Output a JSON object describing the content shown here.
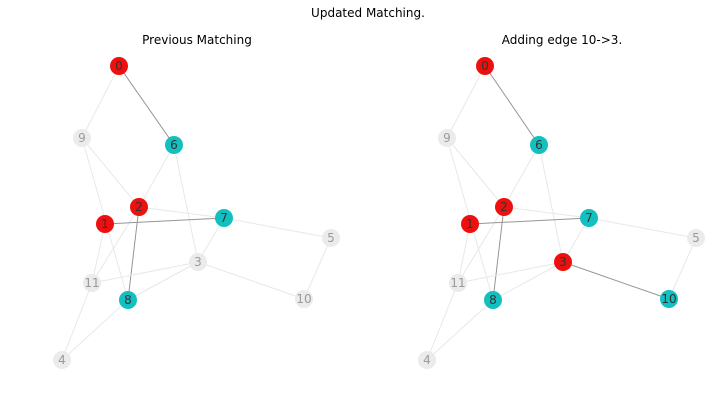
{
  "figure": {
    "title": "Updated Matching."
  },
  "colors": {
    "matched_a": "#ee0f0f",
    "matched_b": "#14bfbf",
    "unmatched_fill": "#ebebeb",
    "matched_label": "#333333",
    "unmatched_label": "#9a9a9a",
    "matching_edge": "#959595",
    "other_edge": "#e8e8e8"
  },
  "panels": [
    {
      "title": "Previous Matching",
      "nodes": [
        {
          "id": "0",
          "label": "0",
          "status": "matched_a"
        },
        {
          "id": "1",
          "label": "1",
          "status": "matched_a"
        },
        {
          "id": "2",
          "label": "2",
          "status": "matched_a"
        },
        {
          "id": "3",
          "label": "3",
          "status": "unmatched"
        },
        {
          "id": "4",
          "label": "4",
          "status": "unmatched"
        },
        {
          "id": "5",
          "label": "5",
          "status": "unmatched"
        },
        {
          "id": "6",
          "label": "6",
          "status": "matched_b"
        },
        {
          "id": "7",
          "label": "7",
          "status": "matched_b"
        },
        {
          "id": "8",
          "label": "8",
          "status": "matched_b"
        },
        {
          "id": "9",
          "label": "9",
          "status": "unmatched"
        },
        {
          "id": "10",
          "label": "10",
          "status": "unmatched"
        },
        {
          "id": "11",
          "label": "11",
          "status": "unmatched"
        }
      ],
      "edges": [
        {
          "source": "0",
          "target": "9",
          "matched": false
        },
        {
          "source": "0",
          "target": "6",
          "matched": true
        },
        {
          "source": "9",
          "target": "2",
          "matched": false
        },
        {
          "source": "9",
          "target": "8",
          "matched": false
        },
        {
          "source": "6",
          "target": "2",
          "matched": false
        },
        {
          "source": "6",
          "target": "3",
          "matched": false
        },
        {
          "source": "2",
          "target": "7",
          "matched": false
        },
        {
          "source": "2",
          "target": "11",
          "matched": false
        },
        {
          "source": "2",
          "target": "8",
          "matched": true
        },
        {
          "source": "1",
          "target": "7",
          "matched": true
        },
        {
          "source": "1",
          "target": "11",
          "matched": false
        },
        {
          "source": "7",
          "target": "5",
          "matched": false
        },
        {
          "source": "7",
          "target": "3",
          "matched": false
        },
        {
          "source": "5",
          "target": "10",
          "matched": false
        },
        {
          "source": "3",
          "target": "11",
          "matched": false
        },
        {
          "source": "3",
          "target": "8",
          "matched": false
        },
        {
          "source": "3",
          "target": "10",
          "matched": false
        },
        {
          "source": "8",
          "target": "4",
          "matched": false
        },
        {
          "source": "11",
          "target": "4",
          "matched": false
        }
      ]
    },
    {
      "title": "Adding edge 10->3.",
      "nodes": [
        {
          "id": "0",
          "label": "0",
          "status": "matched_a"
        },
        {
          "id": "1",
          "label": "1",
          "status": "matched_a"
        },
        {
          "id": "2",
          "label": "2",
          "status": "matched_a"
        },
        {
          "id": "3",
          "label": "3",
          "status": "matched_a"
        },
        {
          "id": "4",
          "label": "4",
          "status": "unmatched"
        },
        {
          "id": "5",
          "label": "5",
          "status": "unmatched"
        },
        {
          "id": "6",
          "label": "6",
          "status": "matched_b"
        },
        {
          "id": "7",
          "label": "7",
          "status": "matched_b"
        },
        {
          "id": "8",
          "label": "8",
          "status": "matched_b"
        },
        {
          "id": "9",
          "label": "9",
          "status": "unmatched"
        },
        {
          "id": "10",
          "label": "10",
          "status": "matched_b"
        },
        {
          "id": "11",
          "label": "11",
          "status": "unmatched"
        }
      ],
      "edges": [
        {
          "source": "0",
          "target": "9",
          "matched": false
        },
        {
          "source": "0",
          "target": "6",
          "matched": true
        },
        {
          "source": "9",
          "target": "2",
          "matched": false
        },
        {
          "source": "9",
          "target": "8",
          "matched": false
        },
        {
          "source": "6",
          "target": "2",
          "matched": false
        },
        {
          "source": "6",
          "target": "3",
          "matched": false
        },
        {
          "source": "2",
          "target": "7",
          "matched": false
        },
        {
          "source": "2",
          "target": "11",
          "matched": false
        },
        {
          "source": "2",
          "target": "8",
          "matched": true
        },
        {
          "source": "1",
          "target": "7",
          "matched": true
        },
        {
          "source": "1",
          "target": "11",
          "matched": false
        },
        {
          "source": "7",
          "target": "5",
          "matched": false
        },
        {
          "source": "7",
          "target": "3",
          "matched": false
        },
        {
          "source": "5",
          "target": "10",
          "matched": false
        },
        {
          "source": "3",
          "target": "11",
          "matched": false
        },
        {
          "source": "3",
          "target": "8",
          "matched": false
        },
        {
          "source": "3",
          "target": "10",
          "matched": true
        },
        {
          "source": "8",
          "target": "4",
          "matched": false
        },
        {
          "source": "11",
          "target": "4",
          "matched": false
        }
      ]
    }
  ]
}
